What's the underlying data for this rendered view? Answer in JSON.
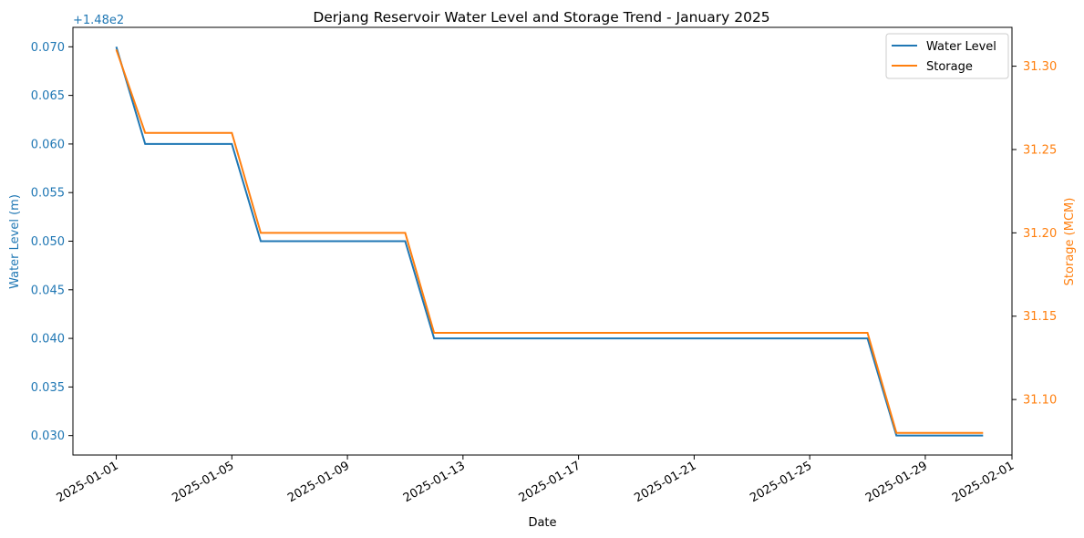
{
  "chart_data": {
    "type": "line",
    "title": "Derjang Reservoir Water Level and Storage Trend - January 2025",
    "xlabel": "Date",
    "ylabel_left": "Water Level (m)",
    "ylabel_right": "Storage (MCM)",
    "left_offset_label": "+1.48e2",
    "x": [
      "2025-01-01",
      "2025-01-02",
      "2025-01-05",
      "2025-01-06",
      "2025-01-11",
      "2025-01-12",
      "2025-01-27",
      "2025-01-28",
      "2025-01-31"
    ],
    "x_ticks": [
      "2025-01-01",
      "2025-01-05",
      "2025-01-09",
      "2025-01-13",
      "2025-01-17",
      "2025-01-21",
      "2025-01-25",
      "2025-01-29",
      "2025-02-01"
    ],
    "left_ticks": [
      "0.030",
      "0.035",
      "0.040",
      "0.045",
      "0.050",
      "0.055",
      "0.060",
      "0.065",
      "0.070"
    ],
    "right_ticks": [
      "31.10",
      "31.15",
      "31.20",
      "31.25",
      "31.30"
    ],
    "xlim": [
      "2024-12-30T12:00",
      "2025-02-01T00:00"
    ],
    "ylim_left": [
      148.028,
      148.072
    ],
    "ylim_right": [
      31.0667,
      31.3233
    ],
    "series": [
      {
        "name": "Water Level",
        "axis": "left",
        "color": "#1f77b4",
        "values": [
          148.07,
          148.06,
          148.06,
          148.05,
          148.05,
          148.04,
          148.04,
          148.03,
          148.03
        ]
      },
      {
        "name": "Storage",
        "axis": "right",
        "color": "#ff7f0e",
        "values": [
          31.31,
          31.26,
          31.26,
          31.2,
          31.2,
          31.14,
          31.14,
          31.08,
          31.08
        ]
      }
    ],
    "legend_position": "top-right",
    "grid": false
  }
}
